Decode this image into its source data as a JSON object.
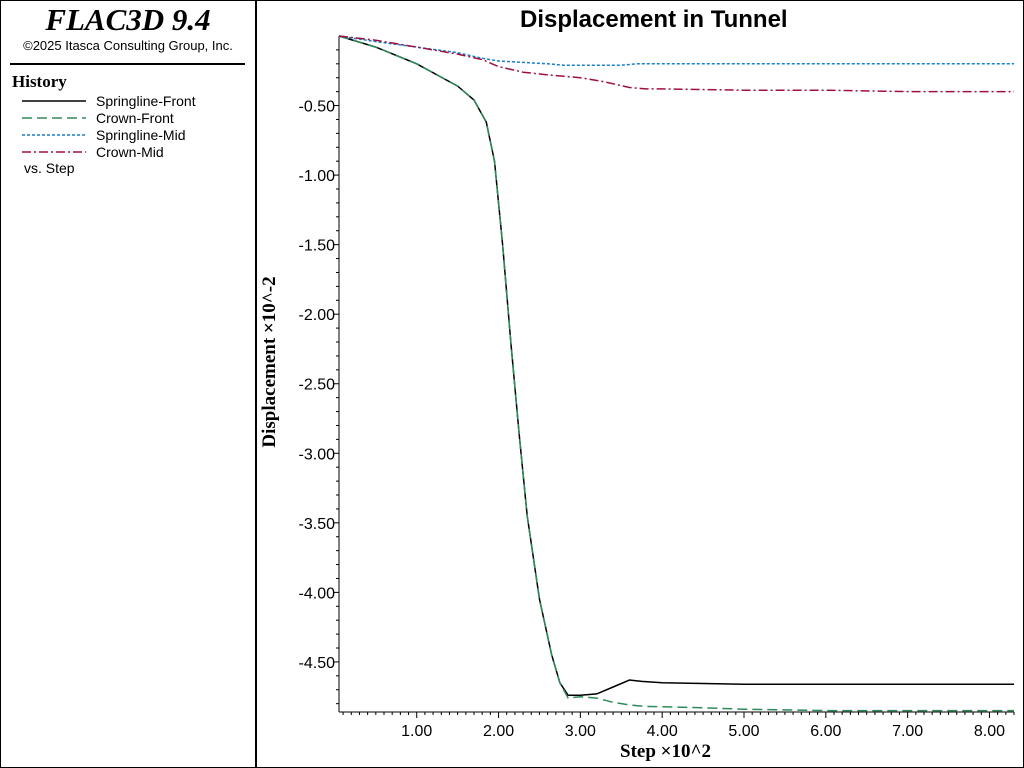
{
  "app": {
    "title": "FLAC3D 9.4",
    "copyright": "©2025 Itasca Consulting Group, Inc."
  },
  "legend": {
    "title": "History",
    "items": [
      {
        "label": "Springline-Front",
        "color": "#000000",
        "dash": "solid"
      },
      {
        "label": "Crown-Front",
        "color": "#2e8b57",
        "dash": "dashed"
      },
      {
        "label": "Springline-Mid",
        "color": "#1a7fc9",
        "dash": "dotted"
      },
      {
        "label": "Crown-Mid",
        "color": "#a0103c",
        "dash": "dashdot"
      }
    ],
    "vs": "vs. Step"
  },
  "chart_data": {
    "type": "line",
    "title": "Displacement in Tunnel",
    "xlabel": "Step ×10^2",
    "ylabel": "Displacement ×10^-2",
    "xlim": [
      0.05,
      8.3
    ],
    "ylim": [
      -4.86,
      0.0
    ],
    "xticks": [
      "1.00",
      "2.00",
      "3.00",
      "4.00",
      "5.00",
      "6.00",
      "7.00",
      "8.00"
    ],
    "yticks": [
      "-0.50",
      "-1.00",
      "-1.50",
      "-2.00",
      "-2.50",
      "-3.00",
      "-3.50",
      "-4.00",
      "-4.50"
    ],
    "series": [
      {
        "name": "Springline-Front",
        "color": "#000000",
        "dash": "solid",
        "x": [
          0.05,
          0.5,
          1.0,
          1.5,
          1.7,
          1.85,
          1.95,
          2.05,
          2.15,
          2.25,
          2.35,
          2.5,
          2.65,
          2.75,
          2.85,
          3.0,
          3.2,
          3.4,
          3.6,
          3.75,
          4.0,
          5.0,
          6.0,
          7.0,
          8.3
        ],
        "y": [
          0.0,
          -0.08,
          -0.2,
          -0.36,
          -0.46,
          -0.62,
          -0.9,
          -1.5,
          -2.2,
          -2.85,
          -3.45,
          -4.05,
          -4.45,
          -4.65,
          -4.74,
          -4.74,
          -4.73,
          -4.68,
          -4.63,
          -4.64,
          -4.65,
          -4.66,
          -4.66,
          -4.66,
          -4.66
        ]
      },
      {
        "name": "Crown-Front",
        "color": "#2e8b57",
        "dash": "dashed",
        "x": [
          0.05,
          0.5,
          1.0,
          1.5,
          1.7,
          1.85,
          1.95,
          2.05,
          2.15,
          2.25,
          2.35,
          2.5,
          2.65,
          2.75,
          2.85,
          3.0,
          3.2,
          3.4,
          3.6,
          3.8,
          4.5,
          5.0,
          6.0,
          7.0,
          8.3
        ],
        "y": [
          0.0,
          -0.08,
          -0.2,
          -0.36,
          -0.46,
          -0.62,
          -0.9,
          -1.5,
          -2.2,
          -2.85,
          -3.45,
          -4.05,
          -4.45,
          -4.65,
          -4.76,
          -4.75,
          -4.76,
          -4.79,
          -4.81,
          -4.82,
          -4.83,
          -4.84,
          -4.85,
          -4.85,
          -4.85
        ]
      },
      {
        "name": "Springline-Mid",
        "color": "#1a7fc9",
        "dash": "dotted",
        "x": [
          0.05,
          0.5,
          1.0,
          1.5,
          1.8,
          2.0,
          2.3,
          2.6,
          2.8,
          3.0,
          3.5,
          3.7,
          4.0,
          5.0,
          6.0,
          7.0,
          8.3
        ],
        "y": [
          0.0,
          -0.04,
          -0.08,
          -0.12,
          -0.16,
          -0.18,
          -0.19,
          -0.2,
          -0.21,
          -0.21,
          -0.21,
          -0.2,
          -0.2,
          -0.2,
          -0.2,
          -0.2,
          -0.2
        ]
      },
      {
        "name": "Crown-Mid",
        "color": "#a0103c",
        "dash": "dashdot",
        "x": [
          0.05,
          0.5,
          1.0,
          1.5,
          1.8,
          2.0,
          2.3,
          2.6,
          2.8,
          3.0,
          3.3,
          3.6,
          3.8,
          4.0,
          5.0,
          6.0,
          7.0,
          8.3
        ],
        "y": [
          0.0,
          -0.03,
          -0.08,
          -0.13,
          -0.17,
          -0.22,
          -0.26,
          -0.28,
          -0.29,
          -0.3,
          -0.33,
          -0.37,
          -0.38,
          -0.38,
          -0.39,
          -0.39,
          -0.4,
          -0.4
        ]
      }
    ]
  }
}
